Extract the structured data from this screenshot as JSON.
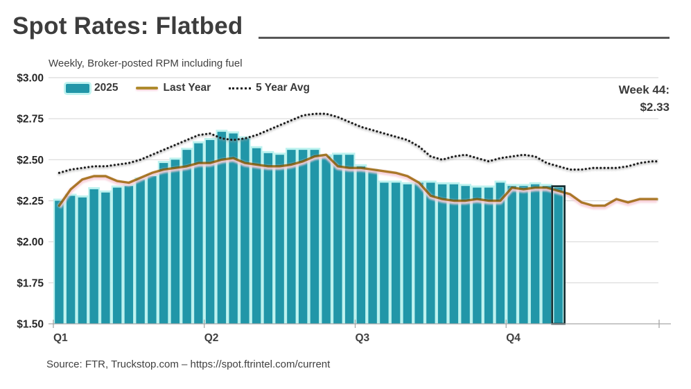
{
  "header": {
    "title": "Spot Rates: Flatbed"
  },
  "chart": {
    "subtitle": "Weekly, Broker-posted RPM including fuel",
    "legend": {
      "bars_label": "2025",
      "line_label": "Last Year",
      "dotted_label": "5 Year Avg"
    },
    "annotation": {
      "line1": "Week 44:",
      "line2": "$2.33"
    }
  },
  "source": {
    "text": "Source: FTR, Truckstop.com – https://spot.ftrintel.com/current"
  },
  "chart_data": {
    "type": "bar",
    "title": "Spot Rates: Flatbed",
    "subtitle": "Weekly, Broker-posted RPM including fuel",
    "x_unit": "week of year",
    "x_axis": {
      "tick_labels": [
        "Q1",
        "Q2",
        "Q3",
        "Q4"
      ],
      "tick_weeks": [
        1,
        14,
        27,
        40
      ],
      "total_weeks": 52
    },
    "y_axis": {
      "tick_labels": [
        "$3.00",
        "$2.75",
        "$2.50",
        "$2.25",
        "$2.00",
        "$1.75",
        "$1.50"
      ],
      "tick_values": [
        3.0,
        2.75,
        2.5,
        2.25,
        2.0,
        1.75,
        1.5
      ],
      "range": [
        1.5,
        3.0
      ],
      "grid": true
    },
    "highlight": {
      "week": 44,
      "value": 2.33,
      "label": "Week 44: $2.33"
    },
    "colors": {
      "bar": "#2196A8",
      "bar_glow": "#BDF2EF",
      "line": "#AE8B2D",
      "line_glow": "#F8CED8",
      "dotted": "#1A1A1A",
      "grid": "#D9D9D9",
      "axis": "#A6A6A6",
      "highlight_box": "#10282C"
    },
    "series": [
      {
        "name": "2025",
        "type": "bar",
        "weeks_start": 1,
        "values": [
          2.25,
          2.28,
          2.27,
          2.32,
          2.3,
          2.33,
          2.34,
          2.38,
          2.4,
          2.48,
          2.5,
          2.56,
          2.6,
          2.62,
          2.67,
          2.66,
          2.63,
          2.57,
          2.54,
          2.53,
          2.56,
          2.56,
          2.56,
          2.52,
          2.53,
          2.53,
          2.46,
          2.43,
          2.36,
          2.36,
          2.35,
          2.36,
          2.36,
          2.35,
          2.35,
          2.34,
          2.33,
          2.33,
          2.36,
          2.34,
          2.34,
          2.35,
          2.34,
          2.33
        ]
      },
      {
        "name": "Last Year",
        "type": "line",
        "weeks_start": 1,
        "values": [
          2.22,
          2.32,
          2.38,
          2.4,
          2.4,
          2.37,
          2.36,
          2.39,
          2.42,
          2.44,
          2.45,
          2.46,
          2.48,
          2.48,
          2.5,
          2.51,
          2.48,
          2.47,
          2.46,
          2.46,
          2.47,
          2.49,
          2.52,
          2.53,
          2.46,
          2.45,
          2.45,
          2.44,
          2.43,
          2.42,
          2.4,
          2.36,
          2.28,
          2.26,
          2.25,
          2.25,
          2.26,
          2.25,
          2.25,
          2.33,
          2.32,
          2.33,
          2.33,
          2.31,
          2.29,
          2.24,
          2.22,
          2.22,
          2.26,
          2.24,
          2.26,
          2.26
        ]
      },
      {
        "name": "5 Year Avg",
        "type": "dotted-line",
        "weeks_start": 1,
        "values": [
          2.42,
          2.44,
          2.45,
          2.46,
          2.46,
          2.47,
          2.48,
          2.5,
          2.53,
          2.56,
          2.59,
          2.62,
          2.65,
          2.66,
          2.63,
          2.62,
          2.63,
          2.65,
          2.68,
          2.71,
          2.74,
          2.77,
          2.78,
          2.78,
          2.76,
          2.73,
          2.7,
          2.68,
          2.66,
          2.64,
          2.62,
          2.58,
          2.52,
          2.5,
          2.52,
          2.53,
          2.51,
          2.49,
          2.51,
          2.52,
          2.53,
          2.52,
          2.48,
          2.46,
          2.44,
          2.44,
          2.45,
          2.45,
          2.45,
          2.46,
          2.48,
          2.49
        ]
      }
    ]
  }
}
